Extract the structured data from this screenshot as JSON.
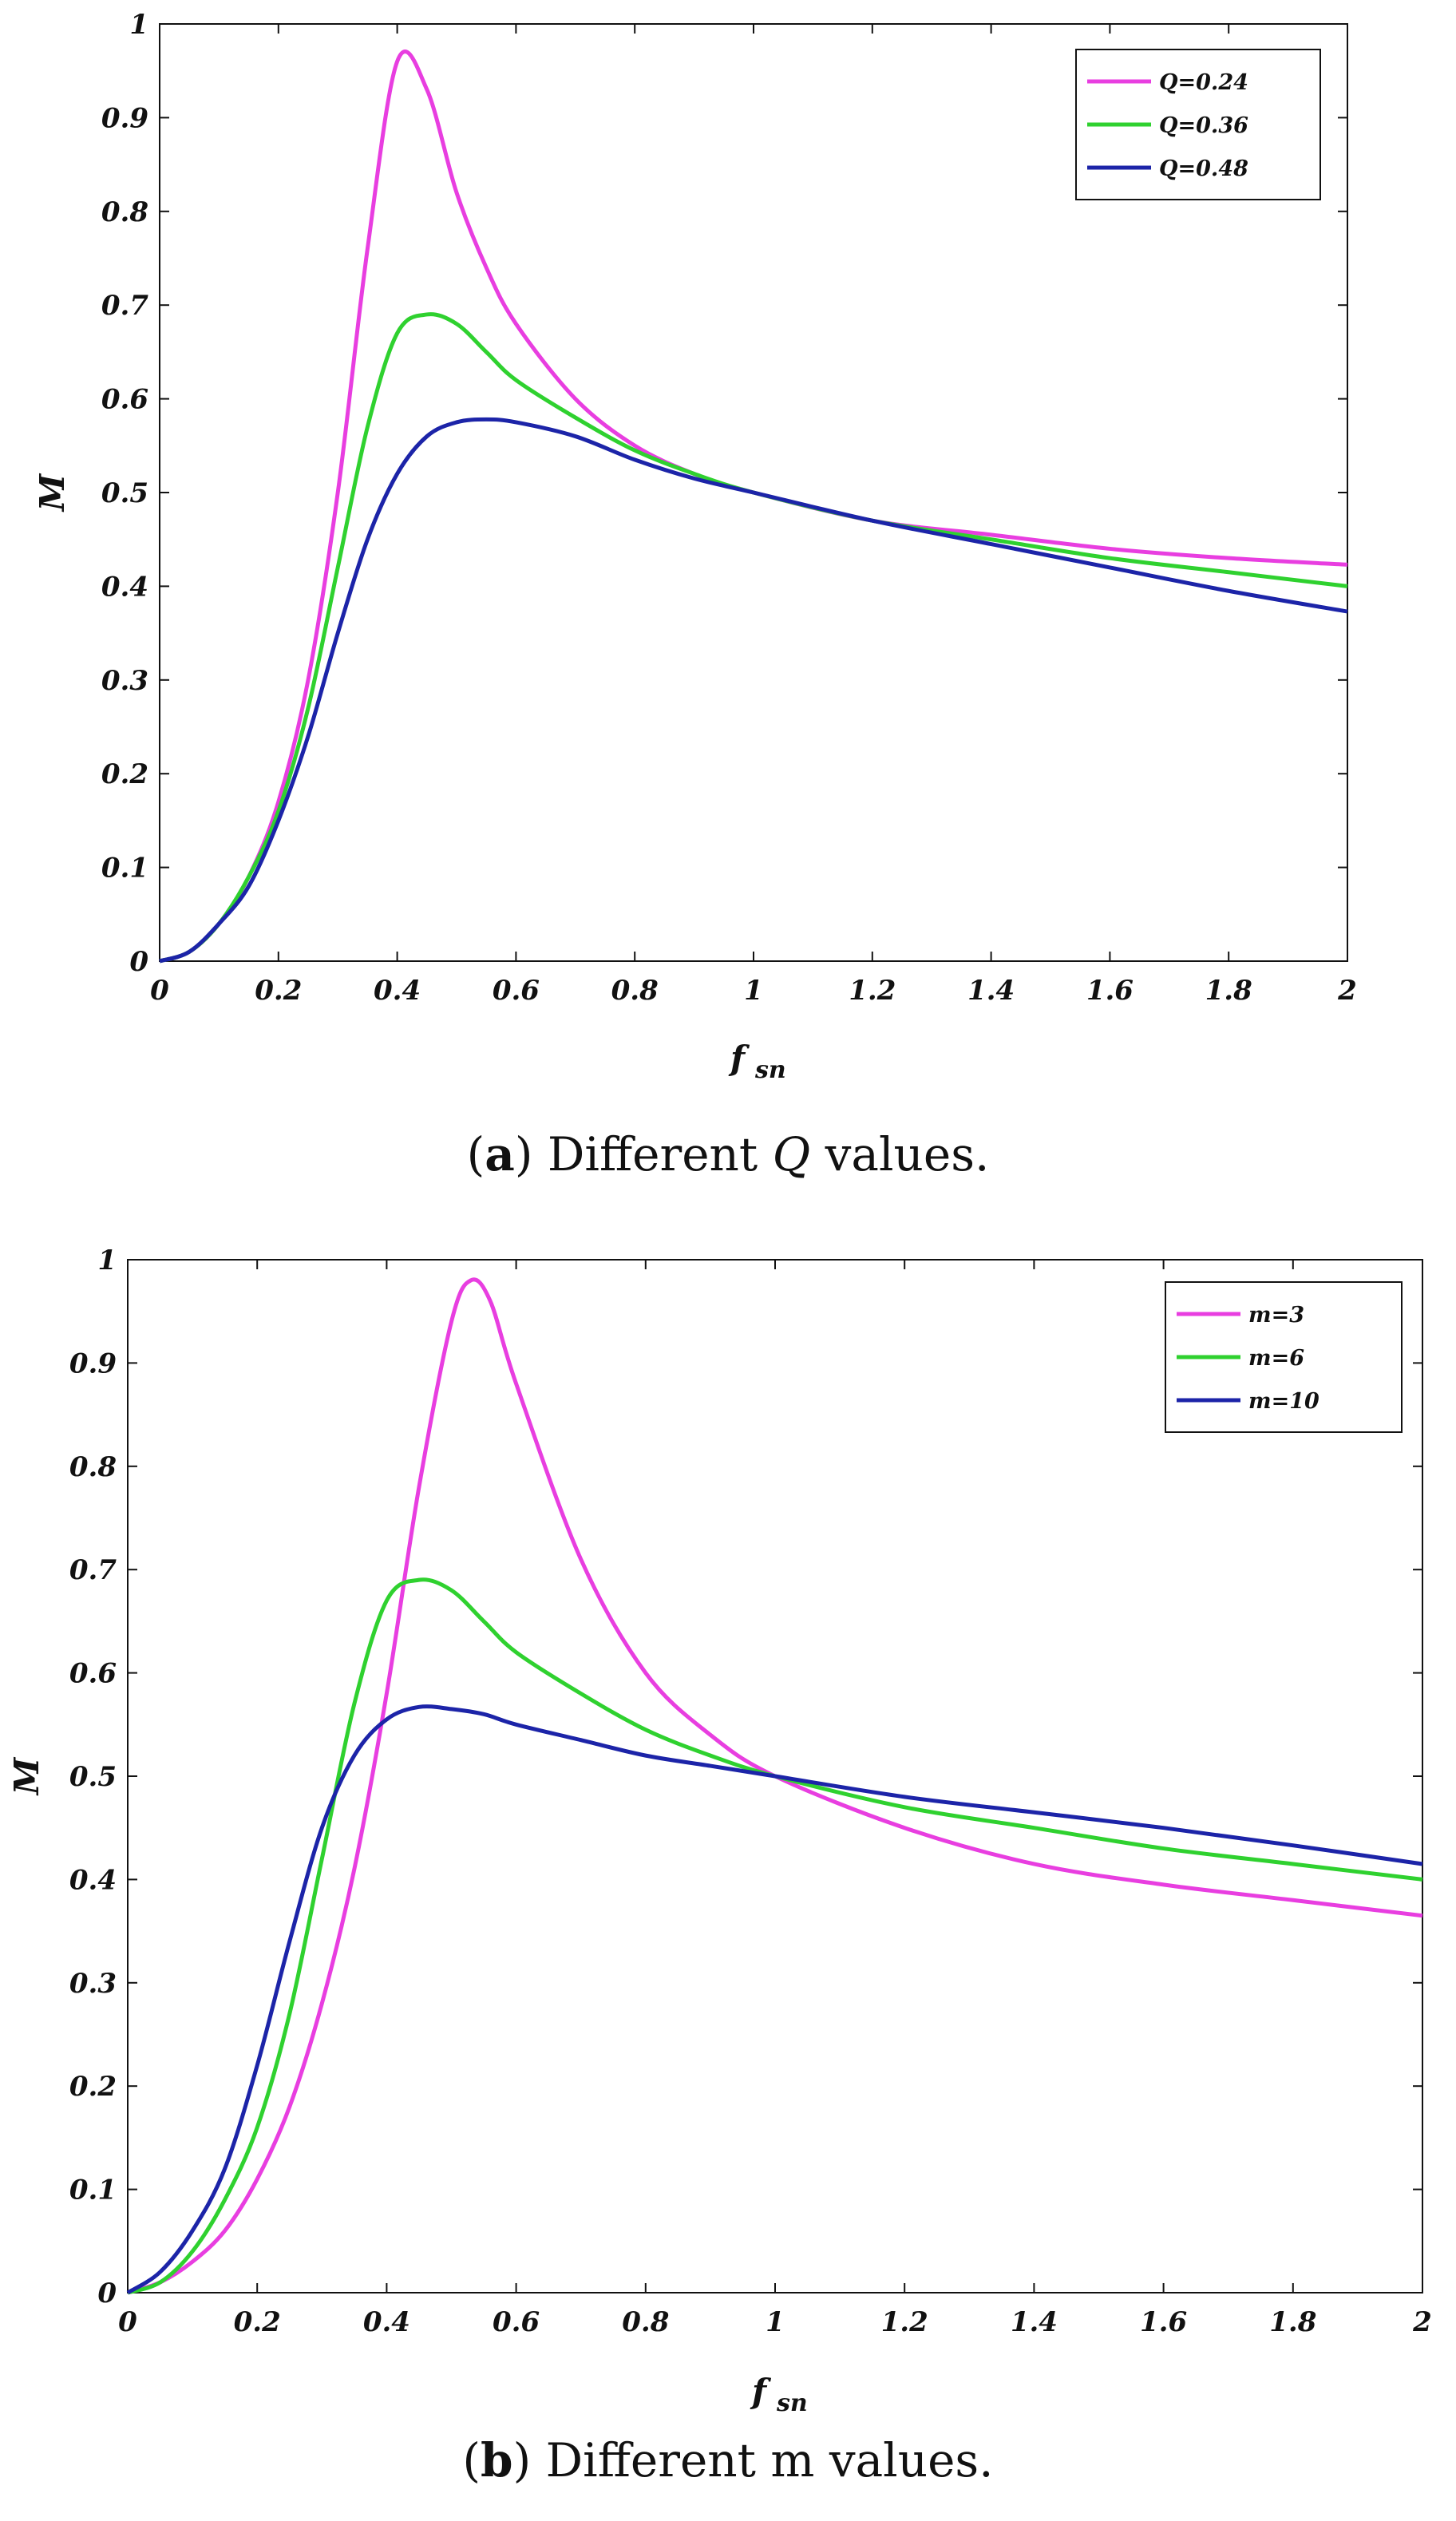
{
  "chart_data": [
    {
      "type": "line",
      "title": "",
      "xlabel": "f",
      "xlabel_sub": "sn",
      "ylabel": "M",
      "xlim": [
        0,
        2
      ],
      "ylim": [
        0,
        1
      ],
      "xticks": [
        "0",
        "0.2",
        "0.4",
        "0.6",
        "0.8",
        "1",
        "1.2",
        "1.4",
        "1.6",
        "1.8",
        "2"
      ],
      "yticks": [
        "0",
        "0.1",
        "0.2",
        "0.3",
        "0.4",
        "0.5",
        "0.6",
        "0.7",
        "0.8",
        "0.9",
        "1"
      ],
      "legend_position": "top-right",
      "grid": false,
      "series": [
        {
          "name": "Q=0.24",
          "color": "#e83ee0",
          "x": [
            0,
            0.05,
            0.1,
            0.15,
            0.2,
            0.25,
            0.3,
            0.35,
            0.4,
            0.45,
            0.5,
            0.55,
            0.6,
            0.7,
            0.8,
            0.9,
            1.0,
            1.2,
            1.4,
            1.6,
            1.8,
            2.0
          ],
          "y": [
            0,
            0.01,
            0.04,
            0.09,
            0.17,
            0.3,
            0.5,
            0.76,
            0.96,
            0.93,
            0.82,
            0.74,
            0.68,
            0.6,
            0.55,
            0.52,
            0.5,
            0.47,
            0.455,
            0.44,
            0.43,
            0.423
          ]
        },
        {
          "name": "Q=0.36",
          "color": "#2fd12f",
          "x": [
            0,
            0.05,
            0.1,
            0.15,
            0.2,
            0.25,
            0.3,
            0.35,
            0.4,
            0.45,
            0.5,
            0.55,
            0.6,
            0.7,
            0.8,
            0.9,
            1.0,
            1.2,
            1.4,
            1.6,
            1.8,
            2.0
          ],
          "y": [
            0,
            0.01,
            0.04,
            0.09,
            0.16,
            0.27,
            0.42,
            0.57,
            0.67,
            0.69,
            0.68,
            0.65,
            0.62,
            0.58,
            0.545,
            0.52,
            0.5,
            0.47,
            0.45,
            0.43,
            0.415,
            0.4
          ]
        },
        {
          "name": "Q=0.48",
          "color": "#1c24a8",
          "x": [
            0,
            0.05,
            0.1,
            0.15,
            0.2,
            0.25,
            0.3,
            0.35,
            0.4,
            0.45,
            0.5,
            0.55,
            0.6,
            0.7,
            0.8,
            0.9,
            1.0,
            1.2,
            1.4,
            1.6,
            1.8,
            2.0
          ],
          "y": [
            0,
            0.01,
            0.04,
            0.08,
            0.15,
            0.24,
            0.35,
            0.45,
            0.52,
            0.56,
            0.575,
            0.578,
            0.575,
            0.56,
            0.535,
            0.515,
            0.5,
            0.47,
            0.445,
            0.42,
            0.395,
            0.373
          ]
        }
      ],
      "caption_label": "a",
      "caption_pre": "Different ",
      "caption_var": "Q",
      "caption_post": " values."
    },
    {
      "type": "line",
      "title": "",
      "xlabel": "f",
      "xlabel_sub": "sn",
      "ylabel": "M",
      "xlim": [
        0,
        2
      ],
      "ylim": [
        0,
        1
      ],
      "xticks": [
        "0",
        "0.2",
        "0.4",
        "0.6",
        "0.8",
        "1",
        "1.2",
        "1.4",
        "1.6",
        "1.8",
        "2"
      ],
      "yticks": [
        "0",
        "0.1",
        "0.2",
        "0.3",
        "0.4",
        "0.5",
        "0.6",
        "0.7",
        "0.8",
        "0.9",
        "1"
      ],
      "legend_position": "top-right",
      "grid": false,
      "series": [
        {
          "name": "m=3",
          "color": "#e83ee0",
          "x": [
            0,
            0.05,
            0.1,
            0.15,
            0.2,
            0.25,
            0.3,
            0.35,
            0.4,
            0.45,
            0.5,
            0.53,
            0.56,
            0.6,
            0.7,
            0.8,
            0.9,
            1.0,
            1.2,
            1.4,
            1.6,
            1.8,
            2.0
          ],
          "y": [
            0,
            0.01,
            0.03,
            0.06,
            0.11,
            0.18,
            0.28,
            0.41,
            0.58,
            0.78,
            0.94,
            0.98,
            0.96,
            0.88,
            0.71,
            0.6,
            0.54,
            0.5,
            0.45,
            0.415,
            0.395,
            0.38,
            0.365
          ]
        },
        {
          "name": "m=6",
          "color": "#2fd12f",
          "x": [
            0,
            0.05,
            0.1,
            0.15,
            0.2,
            0.25,
            0.3,
            0.35,
            0.4,
            0.45,
            0.5,
            0.55,
            0.6,
            0.7,
            0.8,
            0.9,
            1.0,
            1.2,
            1.4,
            1.6,
            1.8,
            2.0
          ],
          "y": [
            0,
            0.01,
            0.04,
            0.09,
            0.16,
            0.27,
            0.42,
            0.57,
            0.67,
            0.69,
            0.68,
            0.65,
            0.62,
            0.58,
            0.545,
            0.52,
            0.5,
            0.47,
            0.45,
            0.43,
            0.415,
            0.4
          ]
        },
        {
          "name": "m=10",
          "color": "#1c24a8",
          "x": [
            0,
            0.05,
            0.1,
            0.15,
            0.2,
            0.25,
            0.3,
            0.35,
            0.4,
            0.45,
            0.5,
            0.55,
            0.6,
            0.7,
            0.8,
            0.9,
            1.0,
            1.2,
            1.4,
            1.6,
            1.8,
            2.0
          ],
          "y": [
            0,
            0.02,
            0.06,
            0.12,
            0.22,
            0.34,
            0.45,
            0.52,
            0.555,
            0.567,
            0.565,
            0.56,
            0.55,
            0.535,
            0.52,
            0.51,
            0.5,
            0.48,
            0.465,
            0.45,
            0.433,
            0.415
          ]
        }
      ],
      "caption_label": "b",
      "caption_pre": "Different ",
      "caption_var": "",
      "caption_post": "m values."
    }
  ]
}
